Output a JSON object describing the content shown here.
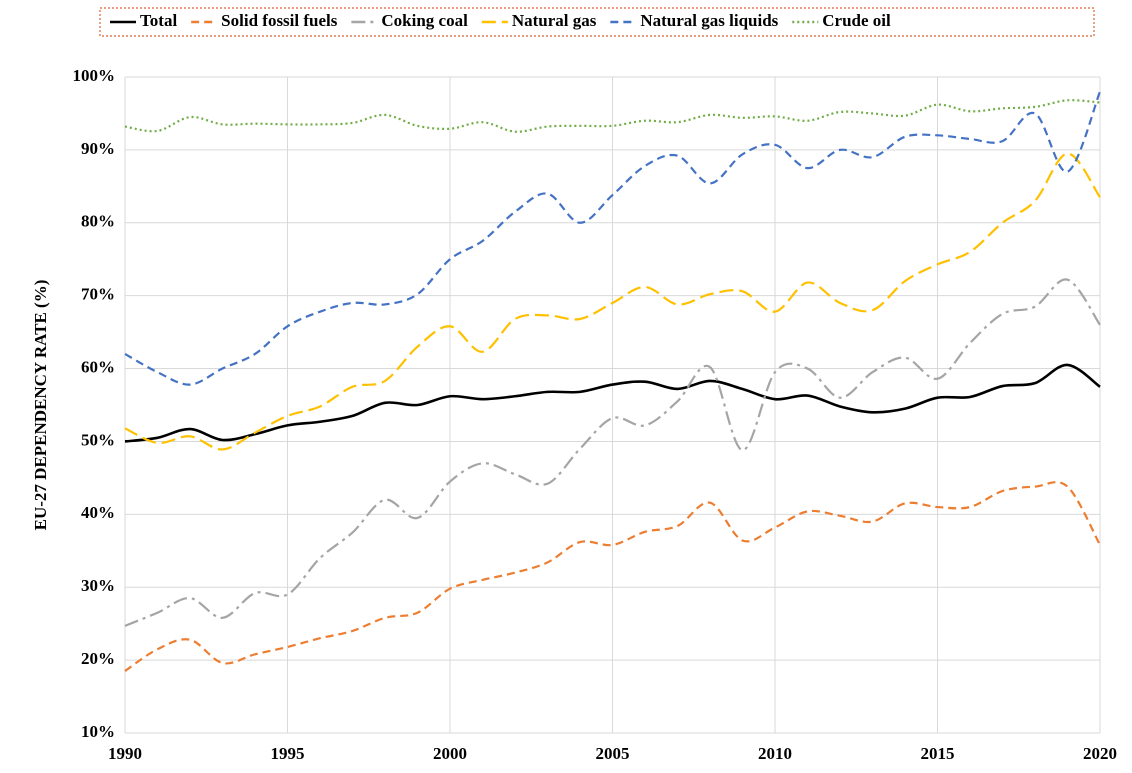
{
  "chart_data": {
    "type": "line",
    "ylabel": "EU-27 DEPENDENCY RATE (%)",
    "x": [
      1990,
      1991,
      1992,
      1993,
      1994,
      1995,
      1996,
      1997,
      1998,
      1999,
      2000,
      2001,
      2002,
      2003,
      2004,
      2005,
      2006,
      2007,
      2008,
      2009,
      2010,
      2011,
      2012,
      2013,
      2014,
      2015,
      2016,
      2017,
      2018,
      2019,
      2020
    ],
    "xlim": [
      1990,
      2020
    ],
    "xticks": [
      1990,
      1995,
      2000,
      2005,
      2010,
      2015,
      2020
    ],
    "ylim": [
      10,
      100
    ],
    "yticks": [
      {
        "value": 10,
        "label": "10%"
      },
      {
        "value": 20,
        "label": "20%"
      },
      {
        "value": 30,
        "label": "30%"
      },
      {
        "value": 40,
        "label": "40%"
      },
      {
        "value": 50,
        "label": "50%"
      },
      {
        "value": 60,
        "label": "60%"
      },
      {
        "value": 70,
        "label": "70%"
      },
      {
        "value": 80,
        "label": "80%"
      },
      {
        "value": 90,
        "label": "90%"
      },
      {
        "value": 100,
        "label": "100%"
      }
    ],
    "grid": true,
    "legend": "top",
    "series": [
      {
        "name": "Total",
        "color": "#000000",
        "style": "solid",
        "values": [
          50,
          50.5,
          51.7,
          50.2,
          51,
          52.2,
          52.7,
          53.5,
          55.3,
          55,
          56.2,
          55.8,
          56.2,
          56.8,
          56.8,
          57.8,
          58.2,
          57.2,
          58.3,
          57.2,
          55.8,
          56.3,
          54.8,
          54,
          54.5,
          56,
          56.1,
          57.6,
          58,
          60.5,
          57.5
        ]
      },
      {
        "name": "Solid fossil fuels",
        "color": "#ed7d31",
        "style": "dashed",
        "values": [
          18.5,
          21.5,
          22.8,
          19.6,
          20.8,
          21.8,
          23,
          24,
          25.8,
          26.5,
          29.8,
          31,
          32,
          33.4,
          36.2,
          35.8,
          37.6,
          38.4,
          41.6,
          36.4,
          38.2,
          40.4,
          39.8,
          39,
          41.5,
          41,
          41,
          43.2,
          43.8,
          43.8,
          35.8
        ]
      },
      {
        "name": "Coking coal",
        "color": "#a5a5a5",
        "style": "dashdot",
        "values": [
          24.7,
          26.5,
          28.5,
          25.8,
          29.2,
          29,
          34,
          37.5,
          42,
          39.5,
          44.5,
          47,
          45.5,
          44.2,
          49,
          53.2,
          52.2,
          55.5,
          60.2,
          48.8,
          59.5,
          60,
          56,
          59.5,
          61.5,
          58.6,
          63.5,
          67.5,
          68.5,
          72.2,
          66
        ]
      },
      {
        "name": "Natural gas",
        "color": "#ffc000",
        "style": "longdash",
        "values": [
          51.8,
          49.8,
          50.7,
          48.9,
          51.2,
          53.5,
          54.8,
          57.5,
          58.3,
          63,
          65.8,
          62.3,
          66.8,
          67.3,
          66.8,
          69,
          71.2,
          68.8,
          70.2,
          70.6,
          67.8,
          71.8,
          69,
          68,
          72,
          74.3,
          76,
          80,
          83,
          89.5,
          83.5
        ]
      },
      {
        "name": "Natural gas liquids",
        "color": "#4472c4",
        "style": "dashed",
        "values": [
          62,
          59.5,
          57.8,
          60,
          62,
          65.8,
          67.8,
          69,
          68.8,
          70.2,
          75,
          77.5,
          81.5,
          84,
          80,
          83.8,
          87.8,
          89.2,
          85.4,
          89.4,
          90.7,
          87.5,
          90,
          89,
          91.8,
          92,
          91.5,
          91.2,
          95,
          87,
          98
        ]
      },
      {
        "name": "Crude oil",
        "color": "#70ad47",
        "style": "dotted",
        "values": [
          93.2,
          92.6,
          94.5,
          93.5,
          93.6,
          93.5,
          93.5,
          93.7,
          94.8,
          93.3,
          92.9,
          93.8,
          92.5,
          93.2,
          93.3,
          93.3,
          94,
          93.8,
          94.8,
          94.4,
          94.6,
          94,
          95.2,
          95,
          94.7,
          96.2,
          95.3,
          95.7,
          95.9,
          96.8,
          96.5
        ]
      }
    ]
  }
}
